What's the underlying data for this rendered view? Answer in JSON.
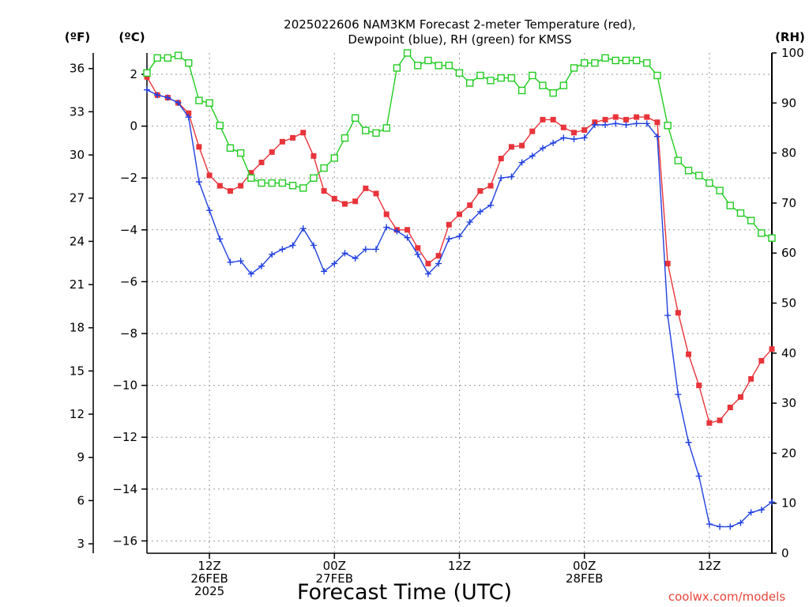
{
  "chart_data": {
    "type": "line",
    "title_lines": [
      "2025022606 NAM3KM Forecast 2-meter Temperature (red),",
      "Dewpoint (blue), RH (green) for KMSS"
    ],
    "xlabel": "Forecast Time (UTC)",
    "credit": "coolwx.com/models",
    "units": {
      "fahrenheit": "(ºF)",
      "celsius": "(ºC)",
      "rh": "(RH)"
    },
    "x_unit": "forecast hour from 2025-02-26 06Z",
    "xlim": [
      0,
      60
    ],
    "x_ticks": [
      {
        "x": 6,
        "lines": [
          "12Z",
          "26FEB",
          "2025"
        ]
      },
      {
        "x": 18,
        "lines": [
          "00Z",
          "27FEB"
        ]
      },
      {
        "x": 30,
        "lines": [
          "12Z"
        ]
      },
      {
        "x": 42,
        "lines": [
          "00Z",
          "28FEB"
        ]
      },
      {
        "x": 54,
        "lines": [
          "12Z"
        ]
      }
    ],
    "ylim_celsius": [
      -16.3,
      2.9
    ],
    "y_ticks_celsius": [
      "2",
      "0",
      "−2",
      "−4",
      "−6",
      "−8",
      "−10",
      "−12",
      "−14",
      "−16"
    ],
    "y_ticks_fahrenheit": [
      "36",
      "33",
      "30",
      "27",
      "24",
      "21",
      "18",
      "15",
      "12",
      "9",
      "6",
      "3"
    ],
    "ylim_rh": [
      0,
      100
    ],
    "y_ticks_rh": [
      "100",
      "90",
      "80",
      "70",
      "60",
      "50",
      "40",
      "30",
      "20",
      "10",
      "0"
    ],
    "grid": true,
    "series": [
      {
        "name": "Temperature",
        "unit": "celsius",
        "color": "#e8343a",
        "marker": "filled-square",
        "x": [
          0,
          1,
          2,
          3,
          4,
          5,
          6,
          7,
          8,
          9,
          10,
          11,
          12,
          13,
          14,
          15,
          16,
          17,
          18,
          19,
          20,
          21,
          22,
          23,
          24,
          25,
          26,
          27,
          28,
          29,
          30,
          31,
          32,
          33,
          34,
          35,
          36,
          37,
          38,
          39,
          40,
          41,
          42,
          43,
          44,
          45,
          46,
          47,
          48,
          49,
          50,
          51,
          52,
          53,
          54,
          55,
          56,
          57,
          58,
          59,
          60
        ],
        "values": [
          1.9,
          1.2,
          1.1,
          0.9,
          0.5,
          -0.8,
          -1.9,
          -2.3,
          -2.5,
          -2.3,
          -1.8,
          -1.4,
          -1.0,
          -0.6,
          -0.45,
          -0.25,
          -1.15,
          -2.5,
          -2.8,
          -3.0,
          -2.9,
          -2.4,
          -2.6,
          -3.4,
          -4.0,
          -4.0,
          -4.7,
          -5.3,
          -5.0,
          -3.8,
          -3.4,
          -3.05,
          -2.5,
          -2.3,
          -1.25,
          -0.8,
          -0.75,
          -0.2,
          0.25,
          0.25,
          -0.05,
          -0.25,
          -0.15,
          0.15,
          0.25,
          0.35,
          0.25,
          0.35,
          0.35,
          0.15,
          -5.3,
          -7.2,
          -8.8,
          -10.0,
          -11.45,
          -11.35,
          -10.85,
          -10.45,
          -9.75,
          -9.05,
          -8.6
        ]
      },
      {
        "name": "Dewpoint",
        "unit": "celsius",
        "color": "#2040e0",
        "marker": "plus",
        "x": [
          0,
          1,
          2,
          3,
          4,
          5,
          6,
          7,
          8,
          9,
          10,
          11,
          12,
          13,
          14,
          15,
          16,
          17,
          18,
          19,
          20,
          21,
          22,
          23,
          24,
          25,
          26,
          27,
          28,
          29,
          30,
          31,
          32,
          33,
          34,
          35,
          36,
          37,
          38,
          39,
          40,
          41,
          42,
          43,
          44,
          45,
          46,
          47,
          48,
          49,
          50,
          51,
          52,
          53,
          54,
          55,
          56,
          57,
          58,
          59,
          60
        ],
        "values": [
          1.4,
          1.2,
          1.1,
          0.9,
          0.35,
          -2.15,
          -3.25,
          -4.35,
          -5.25,
          -5.2,
          -5.7,
          -5.4,
          -4.95,
          -4.75,
          -4.6,
          -3.95,
          -4.6,
          -5.6,
          -5.3,
          -4.9,
          -5.1,
          -4.75,
          -4.75,
          -3.9,
          -4.05,
          -4.3,
          -4.95,
          -5.7,
          -5.3,
          -4.35,
          -4.25,
          -3.7,
          -3.3,
          -3.05,
          -2.0,
          -1.95,
          -1.4,
          -1.15,
          -0.85,
          -0.65,
          -0.45,
          -0.5,
          -0.45,
          0.05,
          0.05,
          0.1,
          0.05,
          0.1,
          0.1,
          -0.4,
          -7.3,
          -10.35,
          -12.2,
          -13.5,
          -15.35,
          -15.45,
          -15.45,
          -15.3,
          -14.9,
          -14.8,
          -14.5
        ]
      },
      {
        "name": "RH",
        "unit": "rh",
        "color": "#22cc22",
        "marker": "open-square",
        "x": [
          0,
          1,
          2,
          3,
          4,
          5,
          6,
          7,
          8,
          9,
          10,
          11,
          12,
          13,
          14,
          15,
          16,
          17,
          18,
          19,
          20,
          21,
          22,
          23,
          24,
          25,
          26,
          27,
          28,
          29,
          30,
          31,
          32,
          33,
          34,
          35,
          36,
          37,
          38,
          39,
          40,
          41,
          42,
          43,
          44,
          45,
          46,
          47,
          48,
          49,
          50,
          51,
          52,
          53,
          54,
          55,
          56,
          57,
          58,
          59,
          60
        ],
        "values": [
          96,
          99,
          99,
          99.5,
          98,
          90.5,
          90,
          85.5,
          81,
          80,
          75,
          74,
          74,
          74,
          73.5,
          73,
          75,
          77,
          79,
          83,
          87,
          84.5,
          84,
          85,
          97,
          100,
          97.5,
          98.5,
          97.5,
          97.5,
          96,
          94,
          95.5,
          94.5,
          95,
          95,
          92.5,
          95.5,
          93.5,
          92,
          93.5,
          97,
          98,
          98,
          99,
          98.5,
          98.5,
          98.5,
          98,
          95.5,
          85.5,
          78.5,
          76.5,
          75.5,
          74,
          72.5,
          69.5,
          68,
          66.5,
          64,
          63
        ]
      }
    ]
  }
}
